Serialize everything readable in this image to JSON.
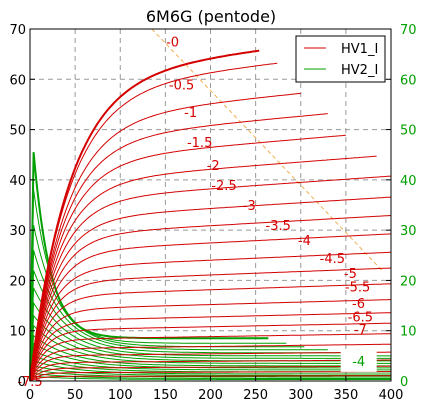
{
  "chart_data": {
    "type": "line",
    "title": "6M6G (pentode)",
    "x_axis": {
      "range": [
        0,
        400
      ],
      "ticks": [
        0,
        50,
        100,
        150,
        200,
        250,
        300,
        350,
        400
      ]
    },
    "y_left": {
      "range": [
        0,
        70
      ],
      "ticks": [
        0,
        10,
        20,
        30,
        40,
        50,
        60,
        70
      ]
    },
    "y_right": {
      "range": [
        0,
        70
      ],
      "ticks": [
        0,
        10,
        20,
        30,
        40,
        50,
        60,
        70
      ],
      "color": "#00a000"
    },
    "grid": true,
    "legend": {
      "placement": "top-right",
      "entries": [
        {
          "name": "HV1_I",
          "color": "#d40000"
        },
        {
          "name": "HV2_I",
          "color": "#00a000"
        }
      ]
    },
    "series": [
      {
        "name": "HV1_I",
        "color": "#d40000",
        "label": "-0",
        "plateau": 66,
        "x_end": 255
      },
      {
        "name": "HV1_I",
        "color": "#d40000",
        "label": "-0.5",
        "plateau": 63,
        "x_end": 275
      },
      {
        "name": "HV1_I",
        "color": "#d40000",
        "label": "-1",
        "plateau": 56.5,
        "x_end": 300
      },
      {
        "name": "HV1_I",
        "color": "#d40000",
        "label": "-1.5",
        "plateau": 52,
        "x_end": 330
      },
      {
        "name": "HV1_I",
        "color": "#d40000",
        "label": "-2",
        "plateau": 47.5,
        "x_end": 350
      },
      {
        "name": "HV1_I",
        "color": "#d40000",
        "label": "-2.5",
        "plateau": 43,
        "x_end": 385
      },
      {
        "name": "HV1_I",
        "color": "#d40000",
        "label": "-3",
        "plateau": 39,
        "x_end": 400
      },
      {
        "name": "HV1_I",
        "color": "#d40000",
        "label": "-3.5",
        "plateau": 35,
        "x_end": 400
      },
      {
        "name": "HV1_I",
        "color": "#d40000",
        "label": "-4",
        "plateau": 31.5,
        "x_end": 400
      },
      {
        "name": "HV1_I",
        "color": "#d40000",
        "label": "-4.5",
        "plateau": 28,
        "x_end": 400
      },
      {
        "name": "HV1_I",
        "color": "#d40000",
        "label": "-5",
        "plateau": 24.5,
        "x_end": 400
      },
      {
        "name": "HV1_I",
        "color": "#d40000",
        "label": "-5.5",
        "plateau": 21.5,
        "x_end": 400
      },
      {
        "name": "HV1_I",
        "color": "#d40000",
        "label": "-6",
        "plateau": 18.5,
        "x_end": 400
      },
      {
        "name": "HV1_I",
        "color": "#d40000",
        "label": "-6.5",
        "plateau": 15.5,
        "x_end": 400
      },
      {
        "name": "HV1_I",
        "color": "#d40000",
        "label": "-7",
        "plateau": 13,
        "x_end": 400
      },
      {
        "name": "HV1_I",
        "color": "#d40000",
        "label": "-7.5",
        "plateau": 11,
        "x_end": 400
      },
      {
        "name": "HV1_I",
        "color": "#d40000",
        "label": "",
        "plateau": 9,
        "x_end": 400
      },
      {
        "name": "HV1_I",
        "color": "#d40000",
        "label": "",
        "plateau": 7,
        "x_end": 400
      },
      {
        "name": "HV1_I",
        "color": "#d40000",
        "label": "",
        "plateau": 5.5,
        "x_end": 400
      },
      {
        "name": "HV1_I",
        "color": "#d40000",
        "label": "",
        "plateau": 4,
        "x_end": 400
      },
      {
        "name": "HV1_I",
        "color": "#d40000",
        "label": "",
        "plateau": 2.8,
        "x_end": 400
      },
      {
        "name": "HV1_I",
        "color": "#d40000",
        "label": "",
        "plateau": 1.8,
        "x_end": 400
      },
      {
        "name": "HV1_I",
        "color": "#d40000",
        "label": "",
        "plateau": 1.0,
        "x_end": 400
      }
    ],
    "screen_series": [
      {
        "name": "HV2_I",
        "color": "#00a000",
        "peak": 45.5,
        "tail": 8.5,
        "x_end": 265
      },
      {
        "name": "HV2_I",
        "color": "#00a000",
        "peak": 38,
        "tail": 7.5,
        "x_end": 285
      },
      {
        "name": "HV2_I",
        "color": "#00a000",
        "peak": 31,
        "tail": 6.8,
        "x_end": 305
      },
      {
        "name": "HV2_I",
        "color": "#00a000",
        "peak": 26,
        "tail": 6.2,
        "x_end": 330
      },
      {
        "name": "HV2_I",
        "color": "#00a000",
        "peak": 22,
        "tail": 5.6,
        "x_end": 350
      },
      {
        "name": "HV2_I",
        "color": "#00a000",
        "peak": 18.5,
        "tail": 5.0,
        "x_end": 400
      },
      {
        "name": "HV2_I",
        "color": "#00a000",
        "peak": 15.5,
        "tail": 4.5,
        "x_end": 400
      },
      {
        "name": "HV2_I",
        "color": "#00a000",
        "peak": 13,
        "tail": 4.0,
        "x_end": 400
      },
      {
        "name": "HV2_I",
        "color": "#00a000",
        "peak": 11,
        "tail": 3.5,
        "x_end": 400
      },
      {
        "name": "HV2_I",
        "color": "#00a000",
        "peak": 9,
        "tail": 3.0,
        "x_end": 400
      },
      {
        "name": "HV2_I",
        "color": "#00a000",
        "peak": 7.5,
        "tail": 2.6,
        "x_end": 400
      },
      {
        "name": "HV2_I",
        "color": "#00a000",
        "peak": 6,
        "tail": 2.2,
        "x_end": 400
      },
      {
        "name": "HV2_I",
        "color": "#00a000",
        "peak": 5,
        "tail": 1.8,
        "x_end": 400
      },
      {
        "name": "HV2_I",
        "color": "#00a000",
        "peak": 4,
        "tail": 1.4,
        "x_end": 400
      },
      {
        "name": "HV2_I",
        "color": "#00a000",
        "peak": 3,
        "tail": 1.1,
        "x_end": 400
      },
      {
        "name": "HV2_I",
        "color": "#00a000",
        "peak": 2.2,
        "tail": 0.8,
        "x_end": 400
      },
      {
        "name": "HV2_I",
        "color": "#00a000",
        "peak": 1.5,
        "tail": 0.5,
        "x_end": 400
      },
      {
        "name": "HV2_I",
        "color": "#00a000",
        "peak": 0.9,
        "tail": 0.3,
        "x_end": 400
      }
    ],
    "screen_label": "-4",
    "load_line": {
      "color": "#f0b050",
      "points": [
        [
          135,
          70
        ],
        [
          390,
          22
        ]
      ]
    }
  }
}
